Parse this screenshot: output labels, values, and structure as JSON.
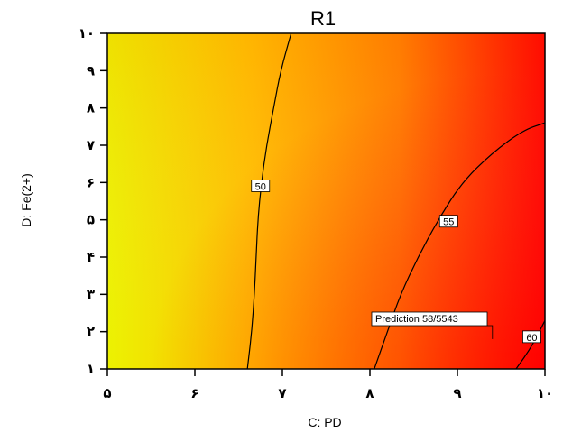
{
  "chart_data": {
    "type": "heatmap",
    "subtype": "contour",
    "title": "R1",
    "xlabel": "C: PD",
    "ylabel": "D: Fe(2+)",
    "xlim": [
      5,
      10
    ],
    "ylim": [
      1,
      10
    ],
    "x_ticks": [
      {
        "value": 5,
        "label": "۵"
      },
      {
        "value": 6,
        "label": "۶"
      },
      {
        "value": 7,
        "label": "۷"
      },
      {
        "value": 8,
        "label": "۸"
      },
      {
        "value": 9,
        "label": "۹"
      },
      {
        "value": 10,
        "label": "۱۰"
      }
    ],
    "y_ticks": [
      {
        "value": 1,
        "label": "۱"
      },
      {
        "value": 2,
        "label": "۲"
      },
      {
        "value": 3,
        "label": "۳"
      },
      {
        "value": 4,
        "label": "۴"
      },
      {
        "value": 5,
        "label": "۵"
      },
      {
        "value": 6,
        "label": "۶"
      },
      {
        "value": 7,
        "label": "۷"
      },
      {
        "value": 8,
        "label": "۸"
      },
      {
        "value": 9,
        "label": "۹"
      },
      {
        "value": 10,
        "label": "۱۰"
      }
    ],
    "colormap": [
      "#ecf200",
      "#ffbf00",
      "#ff8000",
      "#ff0000"
    ],
    "contours": [
      {
        "level": 50,
        "label": "50",
        "label_at": {
          "x": 6.75,
          "y": 5.9
        },
        "points": [
          [
            6.6,
            1
          ],
          [
            6.65,
            2
          ],
          [
            6.68,
            3
          ],
          [
            6.7,
            4
          ],
          [
            6.72,
            5
          ],
          [
            6.76,
            6
          ],
          [
            6.82,
            7
          ],
          [
            6.9,
            8
          ],
          [
            6.98,
            9
          ],
          [
            7.1,
            10
          ]
        ]
      },
      {
        "level": 55,
        "label": "55",
        "label_at": {
          "x": 8.9,
          "y": 4.95
        },
        "points": [
          [
            8.05,
            1
          ],
          [
            8.2,
            2
          ],
          [
            8.35,
            3
          ],
          [
            8.55,
            4
          ],
          [
            8.78,
            5
          ],
          [
            9.05,
            6
          ],
          [
            9.4,
            6.8
          ],
          [
            9.75,
            7.4
          ],
          [
            10,
            7.6
          ]
        ]
      },
      {
        "level": 60,
        "label": "60",
        "label_at": {
          "x": 9.85,
          "y": 1.85
        },
        "points": [
          [
            9.67,
            1
          ],
          [
            9.85,
            1.6
          ],
          [
            10,
            2.3
          ]
        ]
      }
    ],
    "prediction": {
      "text": "Prediction  58/5543",
      "x": 9.4,
      "y": 1.8
    },
    "grid": false,
    "legend": "none"
  }
}
